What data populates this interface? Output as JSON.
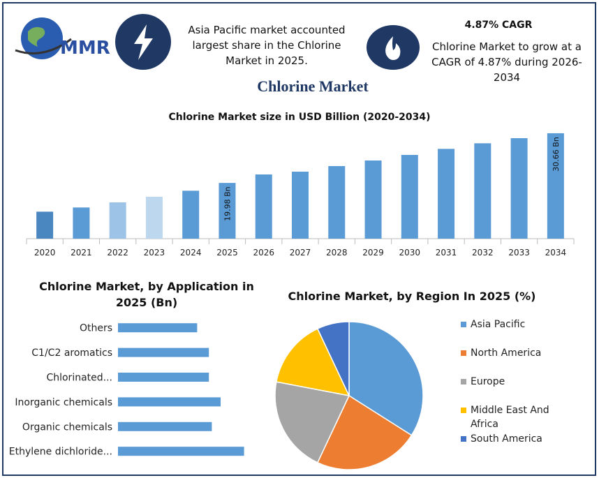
{
  "header": {
    "logo_text": "MMR",
    "highlight_1": "Asia Pacific market accounted largest share in the Chlorine Market in 2025.",
    "cagr_title": "4.87% CAGR",
    "highlight_2": "Chlorine Market to grow at a CAGR of 4.87% during 2026-2034",
    "title": "Chlorine Market"
  },
  "chart_data": [
    {
      "type": "bar",
      "title": "Chlorine Market size in USD Billion (2020-2034)",
      "categories": [
        "2020",
        "2021",
        "2022",
        "2023",
        "2024",
        "2025",
        "2026",
        "2027",
        "2028",
        "2029",
        "2030",
        "2031",
        "2032",
        "2033",
        "2034"
      ],
      "values": [
        13.8,
        14.7,
        15.8,
        17.0,
        18.3,
        19.98,
        21.8,
        22.4,
        23.6,
        24.8,
        26.0,
        27.3,
        28.5,
        29.6,
        30.66
      ],
      "value_labels": [
        null,
        null,
        null,
        null,
        null,
        "19.98 Bn",
        null,
        null,
        null,
        null,
        null,
        null,
        null,
        null,
        "30.66 Bn"
      ],
      "colors": [
        "#4a86c0",
        "#5b9bd5",
        "#9dc3e6",
        "#bdd7ee",
        "#5b9bd5",
        "#5b9bd5",
        "#5b9bd5",
        "#5b9bd5",
        "#5b9bd5",
        "#5b9bd5",
        "#5b9bd5",
        "#5b9bd5",
        "#5b9bd5",
        "#5b9bd5",
        "#5b9bd5"
      ],
      "ylim": [
        8,
        32
      ]
    },
    {
      "type": "bar",
      "orientation": "horizontal",
      "title": "Chlorine Market, by Application in 2025 (Bn)",
      "categories": [
        "Others",
        "C1/C2 aromatics",
        "Chlorinated...",
        "Inorganic chemicals",
        "Organic chemicals",
        "Ethylene dichloride..."
      ],
      "values": [
        2.7,
        3.1,
        3.1,
        3.5,
        3.2,
        4.3
      ],
      "color": "#5b9bd5",
      "xlim": [
        0,
        5
      ]
    },
    {
      "type": "pie",
      "title": "Chlorine Market, by Region In 2025 (%)",
      "categories": [
        "Asia Pacific",
        "North America",
        "Europe",
        "Middle East And Africa",
        "South America"
      ],
      "values": [
        34,
        23,
        21,
        15,
        7
      ],
      "colors": [
        "#5b9bd5",
        "#ed7d31",
        "#a5a5a5",
        "#ffc000",
        "#4472c4"
      ],
      "legend": "right"
    }
  ]
}
